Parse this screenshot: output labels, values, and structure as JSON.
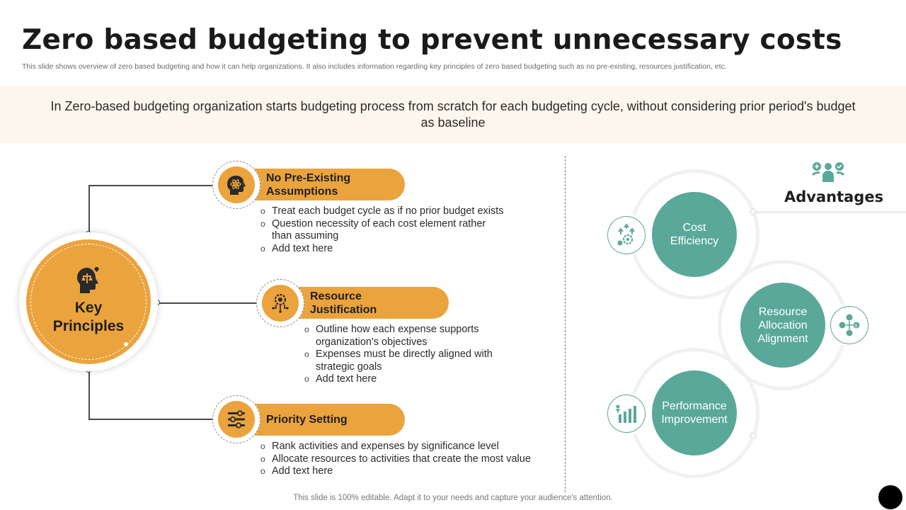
{
  "title": "Zero based budgeting to prevent unnecessary costs",
  "subtitle": "This slide shows overview of zero  based budgeting and how it can help organizations. It also includes information regarding key principles of zero based budgeting such as no pre-existing, resources justification, etc.",
  "banner": "In Zero-based budgeting organization starts budgeting process from scratch for each budgeting cycle, without  considering prior period's budget as baseline",
  "key_principles": {
    "label_line1": "Key",
    "label_line2": "Principles",
    "icon": "head-scales-icon",
    "items": [
      {
        "title_line1": "No Pre-Existing",
        "title_line2": "Assumptions",
        "icon": "atom-head-icon",
        "bullets": [
          "Treat each budget cycle as if no prior budget exists",
          "Question necessity of each cost element rather than assuming",
          "Add text here"
        ]
      },
      {
        "title_line1": "Resource",
        "title_line2": "Justification",
        "icon": "gear-circuit-icon",
        "bullets": [
          "Outline how each expense supports organization's objectives",
          "Expenses must be directly aligned with strategic goals",
          "Add text here"
        ]
      },
      {
        "title_line1": "Priority Setting",
        "title_line2": "",
        "icon": "sliders-icon",
        "bullets": [
          "Rank activities and expenses by significance level",
          "Allocate resources to activities that create the most value",
          "Add text here"
        ]
      }
    ]
  },
  "advantages": {
    "title": "Advantages",
    "icon": "people-balance-icon",
    "items": [
      {
        "line1": "Cost",
        "line2": "Efficiency",
        "line3": "",
        "icon": "growth-gear-icon"
      },
      {
        "line1": "Resource",
        "line2": "Allocation",
        "line3": "Alignment",
        "icon": "money-network-icon"
      },
      {
        "line1": "Performance",
        "line2": "Improvement",
        "line3": "",
        "icon": "bar-growth-icon"
      }
    ]
  },
  "footer": "This slide is 100% editable. Adapt it to your needs and capture your audience's attention.",
  "colors": {
    "accent_orange": "#eba33d",
    "accent_teal": "#5aa89a",
    "banner_bg": "#fdf6ec"
  }
}
